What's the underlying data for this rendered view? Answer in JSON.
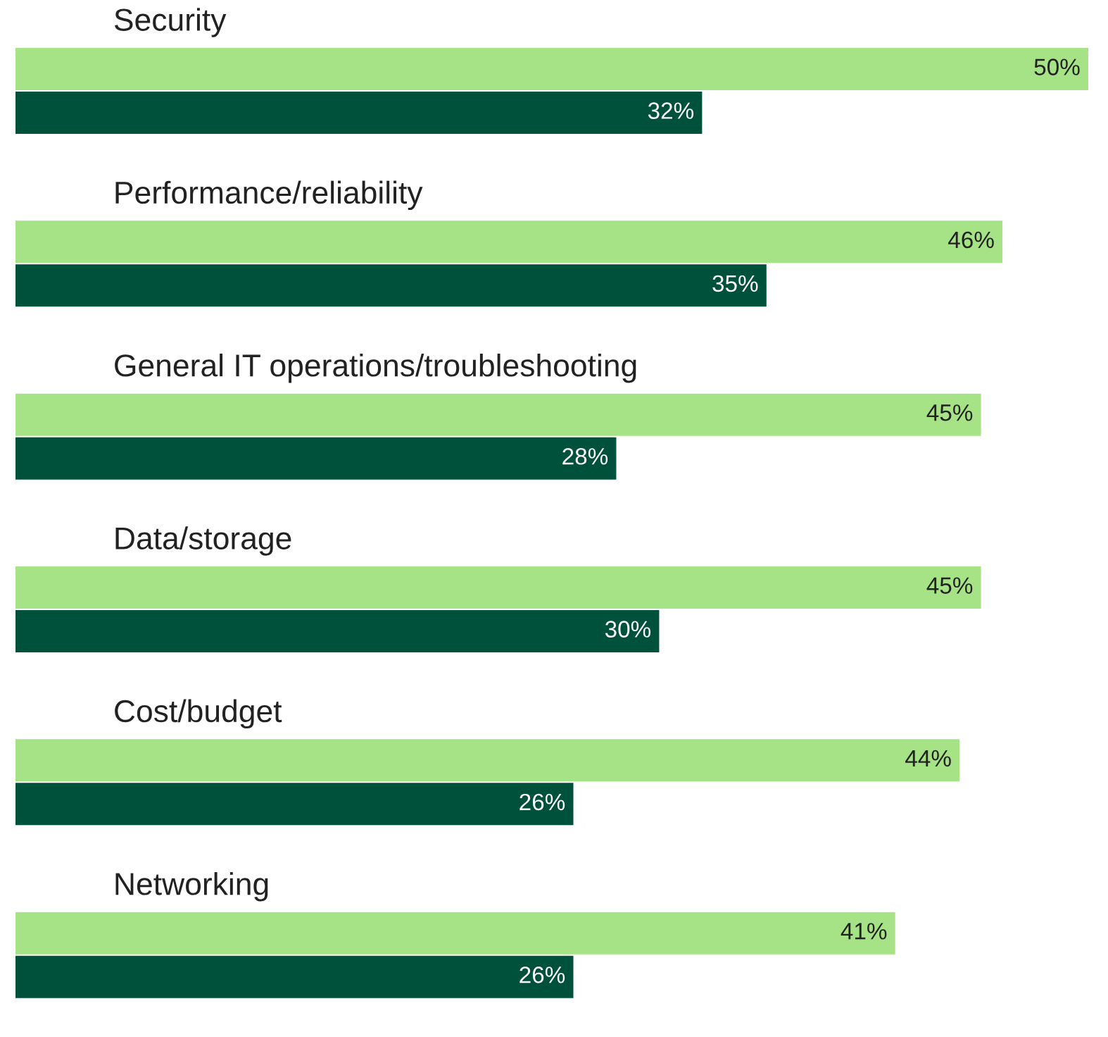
{
  "chart_data": {
    "type": "bar",
    "orientation": "horizontal",
    "categories": [
      "Security",
      "Performance/reliability",
      "General IT operations/troubleshooting",
      "Data/storage",
      "Cost/budget",
      "Networking"
    ],
    "series": [
      {
        "color": "#a6e386",
        "values": [
          50,
          46,
          45,
          45,
          44,
          41
        ],
        "value_labels": [
          "50%",
          "46%",
          "45%",
          "45%",
          "44%",
          "41%"
        ]
      },
      {
        "color": "#00513b",
        "values": [
          32,
          35,
          28,
          30,
          26,
          26
        ],
        "value_labels": [
          "32%",
          "35%",
          "28%",
          "30%",
          "26%",
          "26%"
        ]
      }
    ]
  }
}
